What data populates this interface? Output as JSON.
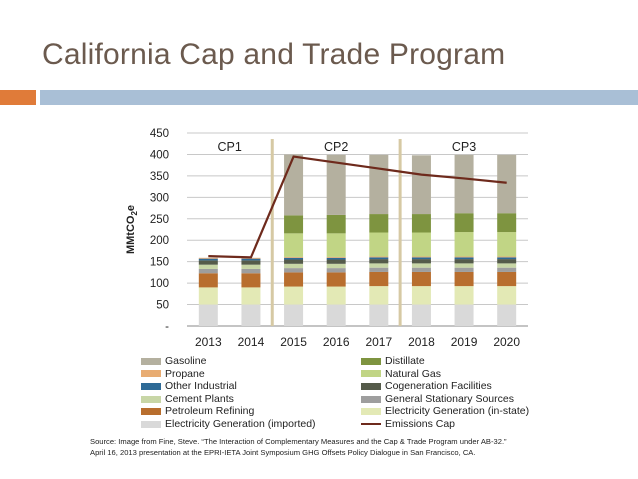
{
  "slide": {
    "title": "California Cap and Trade Program",
    "source_line1": "Source: Image from Fine, Steve. “The Interaction of Complementary Measures and the Cap & Trade Program under AB-32.”",
    "source_line2": "April 16, 2013 presentation at the EPRI-IETA Joint Symposium GHG Offsets Policy Dialogue in San Francisco, CA."
  },
  "colors": {
    "title": "#6b5a4e",
    "accent_orange": "#e07b39",
    "accent_blue": "#a9bfd6",
    "period_divider": "#d6c9a4",
    "cap_line": "#6e2a1c"
  },
  "chart_data": {
    "type": "bar",
    "stacked": true,
    "categories": [
      "2013",
      "2014",
      "2015",
      "2016",
      "2017",
      "2018",
      "2019",
      "2020"
    ],
    "ylabel": "MMtCO2e",
    "ylabel_main": "MMtCO",
    "ylabel_sub": "2",
    "ylabel_tail": "e",
    "ylim": [
      0,
      450
    ],
    "yticks": [
      0,
      50,
      100,
      150,
      200,
      250,
      300,
      350,
      400,
      450
    ],
    "ytick_labels": [
      "-",
      "50",
      "100",
      "150",
      "200",
      "250",
      "300",
      "350",
      "400",
      "450"
    ],
    "grid": true,
    "compliance_periods": [
      {
        "label": "CP1",
        "from": "2013",
        "to": "2014"
      },
      {
        "label": "CP2",
        "from": "2015",
        "to": "2017"
      },
      {
        "label": "CP3",
        "from": "2018",
        "to": "2020"
      }
    ],
    "series": [
      {
        "name": "Electricity Generation (imported)",
        "color": "#d9d9d9",
        "values": [
          50,
          50,
          50,
          50,
          50,
          50,
          50,
          50
        ]
      },
      {
        "name": "Electricity Generation (in-state)",
        "color": "#e3e9b5",
        "values": [
          40,
          40,
          42,
          42,
          43,
          43,
          43,
          43
        ]
      },
      {
        "name": "Petroleum Refining",
        "color": "#b86e2e",
        "values": [
          33,
          33,
          33,
          33,
          33,
          33,
          33,
          33
        ]
      },
      {
        "name": "General Stationary Sources",
        "color": "#9e9e9e",
        "values": [
          10,
          10,
          10,
          10,
          10,
          10,
          10,
          10
        ]
      },
      {
        "name": "Cement Plants",
        "color": "#c8d6a6",
        "values": [
          10,
          10,
          10,
          10,
          10,
          10,
          10,
          10
        ]
      },
      {
        "name": "Cogeneration Facilities",
        "color": "#555b4a",
        "values": [
          10,
          10,
          10,
          10,
          10,
          10,
          10,
          10
        ]
      },
      {
        "name": "Other Industrial",
        "color": "#2e6a96",
        "values": [
          4,
          4,
          4,
          4,
          4,
          4,
          4,
          4
        ]
      },
      {
        "name": "Propane",
        "color": "#e8ac72",
        "values": [
          2,
          2,
          2,
          2,
          2,
          2,
          2,
          2
        ]
      },
      {
        "name": "Natural Gas",
        "color": "#c1d585",
        "values": [
          0,
          0,
          55,
          55,
          56,
          56,
          57,
          57
        ]
      },
      {
        "name": "Distillate",
        "color": "#7e9440",
        "values": [
          0,
          0,
          42,
          43,
          43,
          43,
          44,
          44
        ]
      },
      {
        "name": "Gasoline",
        "color": "#b4b09f",
        "values": [
          0,
          0,
          142,
          140,
          138,
          137,
          136,
          136
        ]
      }
    ],
    "emissions_cap": {
      "name": "Emissions Cap",
      "color": "#6e2a1c",
      "values": [
        163,
        160,
        395,
        381,
        367,
        353,
        344,
        334
      ]
    },
    "legend": {
      "position": "bottom",
      "entries": [
        {
          "label": "Gasoline",
          "color": "#b4b09f",
          "kind": "box"
        },
        {
          "label": "Distillate",
          "color": "#7e9440",
          "kind": "box"
        },
        {
          "label": "Propane",
          "color": "#e8ac72",
          "kind": "box"
        },
        {
          "label": "Natural Gas",
          "color": "#c1d585",
          "kind": "box"
        },
        {
          "label": "Other Industrial",
          "color": "#2e6a96",
          "kind": "box"
        },
        {
          "label": "Cogeneration Facilities",
          "color": "#555b4a",
          "kind": "box"
        },
        {
          "label": "Cement Plants",
          "color": "#c8d6a6",
          "kind": "box"
        },
        {
          "label": "General Stationary Sources",
          "color": "#9e9e9e",
          "kind": "box"
        },
        {
          "label": "Petroleum Refining",
          "color": "#b86e2e",
          "kind": "box"
        },
        {
          "label": "Electricity Generation (in-state)",
          "color": "#e3e9b5",
          "kind": "box"
        },
        {
          "label": "Electricity Generation (imported)",
          "color": "#d9d9d9",
          "kind": "box"
        },
        {
          "label": "Emissions Cap",
          "color": "#6e2a1c",
          "kind": "line"
        }
      ]
    }
  }
}
